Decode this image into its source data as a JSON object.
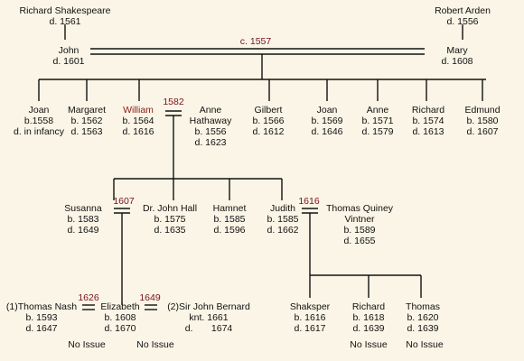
{
  "people": {
    "richard_shakespeare": {
      "name": "Richard Shakespeare",
      "d": "d. 1561"
    },
    "robert_arden": {
      "name": "Robert Arden",
      "d": "d. 1556"
    },
    "john": {
      "name": "John",
      "d": "d. 1601"
    },
    "mary": {
      "name": "Mary",
      "d": "d. 1608"
    },
    "joan1": {
      "name": "Joan",
      "b": "b.1558",
      "d": "d. in infancy"
    },
    "margaret": {
      "name": "Margaret",
      "b": "b. 1562",
      "d": "d. 1563"
    },
    "william": {
      "name": "William",
      "b": "b. 1564",
      "d": "d. 1616"
    },
    "anne_hathaway": {
      "name1": "Anne",
      "name2": "Hathaway",
      "b": "b. 1556",
      "d": "d. 1623"
    },
    "gilbert": {
      "name": "Gilbert",
      "b": "b. 1566",
      "d": "d. 1612"
    },
    "joan2": {
      "name": "Joan",
      "b": "b. 1569",
      "d": "d. 1646"
    },
    "anne": {
      "name": "Anne",
      "b": "b. 1571",
      "d": "d. 1579"
    },
    "richard": {
      "name": "Richard",
      "b": "b. 1574",
      "d": "d. 1613"
    },
    "edmund": {
      "name": "Edmund",
      "b": "b. 1580",
      "d": "d. 1607"
    },
    "susanna": {
      "name": "Susanna",
      "b": "b. 1583",
      "d": "d. 1649"
    },
    "john_hall": {
      "name": "Dr. John Hall",
      "b": "b. 1575",
      "d": "d. 1635"
    },
    "hamnet": {
      "name": "Hamnet",
      "b": "b. 1585",
      "d": "d. 1596"
    },
    "judith": {
      "name": "Judith",
      "b": "b. 1585",
      "d": "d. 1662"
    },
    "thomas_quiney": {
      "name1": "Thomas Quiney",
      "name2": "Vintner",
      "b": "b. 1589",
      "d": "d. 1655"
    },
    "thomas_nash": {
      "name": "(1)Thomas Nash",
      "b": "b. 1593",
      "d": "d. 1647"
    },
    "elizabeth": {
      "name": "Elizabeth",
      "b": "b. 1608",
      "d": "d. 1670"
    },
    "john_bernard": {
      "name": "(2)Sir John Bernard",
      "b": "knt. 1661",
      "d": "d.       1674"
    },
    "shaksper": {
      "name": "Shaksper",
      "b": "b. 1616",
      "d": "d. 1617"
    },
    "richard2": {
      "name": "Richard",
      "b": "b. 1618",
      "d": "d. 1639"
    },
    "thomas": {
      "name": "Thomas",
      "b": "b. 1620",
      "d": "d. 1639"
    }
  },
  "marriage_dates": {
    "john_mary": "c. 1557",
    "william_anne": "1582",
    "susanna_hall": "1607",
    "judith_quiney": "1616",
    "nash_elizabeth": "1626",
    "elizabeth_bernard": "1649"
  },
  "no_issue": {
    "nash": "No Issue",
    "bernard": "No Issue",
    "richard2": "No Issue",
    "thomas": "No Issue"
  },
  "colors": {
    "background": "#faf5e6",
    "lines": "#111111",
    "dates": "#7a1020",
    "william": "#8b1a1a"
  }
}
